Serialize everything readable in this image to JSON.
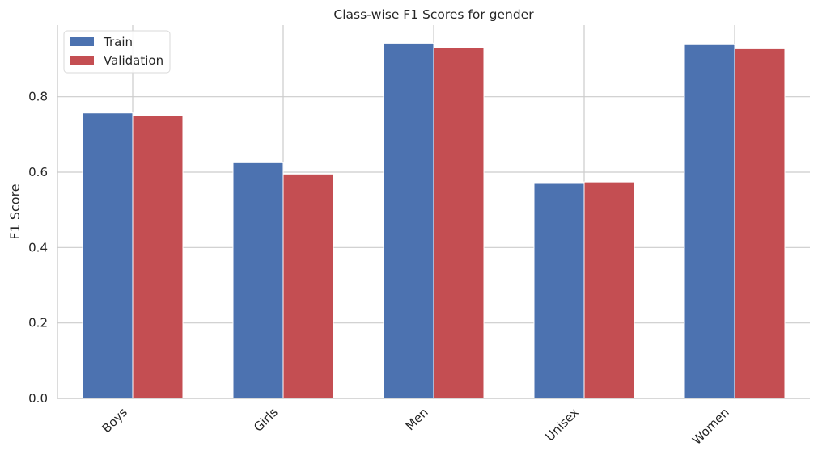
{
  "chart_data": {
    "type": "bar",
    "title": "Class-wise F1 Scores for gender",
    "xlabel": "",
    "ylabel": "F1 Score",
    "categories": [
      "Boys",
      "Girls",
      "Men",
      "Unisex",
      "Women"
    ],
    "series": [
      {
        "name": "Train",
        "values": [
          0.757,
          0.625,
          0.942,
          0.57,
          0.938
        ]
      },
      {
        "name": "Validation",
        "values": [
          0.75,
          0.595,
          0.931,
          0.574,
          0.927
        ]
      }
    ],
    "ylim": [
      0,
      0.99
    ],
    "yticks": [
      0.0,
      0.2,
      0.4,
      0.6,
      0.8
    ],
    "ytick_labels": [
      "0.0",
      "0.2",
      "0.4",
      "0.6",
      "0.8"
    ],
    "grid": true,
    "legend_position": "top-left",
    "colors": {
      "Train": "#4c72b0",
      "Validation": "#c44e52",
      "grid": "#cccccc"
    }
  }
}
